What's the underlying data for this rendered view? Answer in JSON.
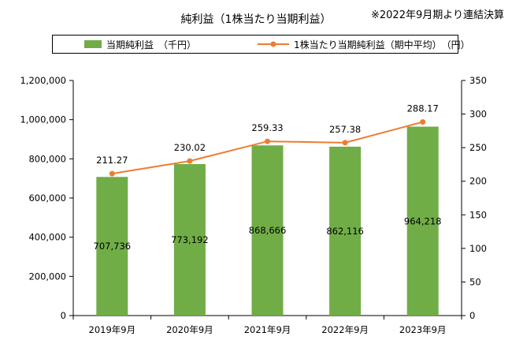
{
  "note": "※2022年9月期より連結決算",
  "chart_data": {
    "type": "bar",
    "title": "純利益（1株当たり当期利益）",
    "categories": [
      "2019年9月",
      "2020年9月",
      "2021年9月",
      "2022年9月",
      "2023年9月"
    ],
    "series": [
      {
        "name": "当期純利益　（千円）",
        "type": "bar",
        "axis": "left",
        "color": "#70AD47",
        "values": [
          707736,
          773192,
          868666,
          862116,
          964218
        ],
        "labels": [
          "707,736",
          "773,192",
          "868,666",
          "862,116",
          "964,218"
        ]
      },
      {
        "name": "1株当たり当期純利益（期中平均）　（円）",
        "type": "line",
        "axis": "right",
        "color": "#ED7D31",
        "values": [
          211.27,
          230.02,
          259.33,
          257.38,
          288.17
        ],
        "labels": [
          "211.27",
          "230.02",
          "259.33",
          "257.38",
          "288.17"
        ]
      }
    ],
    "y_left": {
      "range": [
        0,
        1200000
      ],
      "ticks": [
        0,
        200000,
        400000,
        600000,
        800000,
        1000000,
        1200000
      ],
      "tick_labels": [
        "0",
        "200,000",
        "400,000",
        "600,000",
        "800,000",
        "1,000,000",
        "1,200,000"
      ]
    },
    "y_right": {
      "range": [
        0,
        350
      ],
      "ticks": [
        0,
        50,
        100,
        150,
        200,
        250,
        300,
        350
      ],
      "tick_labels": [
        "0",
        "50",
        "100",
        "150",
        "200",
        "250",
        "300",
        "350"
      ]
    },
    "grid": false,
    "legend_position": "top"
  }
}
